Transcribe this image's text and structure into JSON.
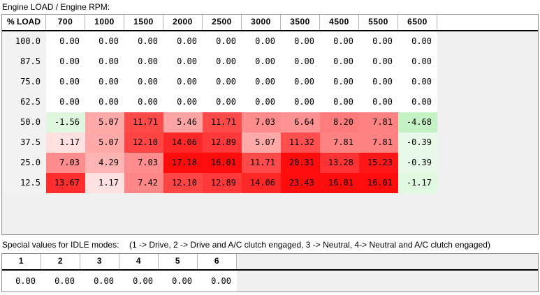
{
  "map": {
    "title": "Engine LOAD / Engine RPM:",
    "corner_label": "% LOAD",
    "rpm_columns": [
      "700",
      "1000",
      "1500",
      "2000",
      "2500",
      "3000",
      "3500",
      "4500",
      "5500",
      "6500"
    ],
    "rows": [
      {
        "load": "100.0",
        "values": [
          0.0,
          0.0,
          0.0,
          0.0,
          0.0,
          0.0,
          0.0,
          0.0,
          0.0,
          0.0
        ]
      },
      {
        "load": "87.5",
        "values": [
          0.0,
          0.0,
          0.0,
          0.0,
          0.0,
          0.0,
          0.0,
          0.0,
          0.0,
          0.0
        ]
      },
      {
        "load": "75.0",
        "values": [
          0.0,
          0.0,
          0.0,
          0.0,
          0.0,
          0.0,
          0.0,
          0.0,
          0.0,
          0.0
        ]
      },
      {
        "load": "62.5",
        "values": [
          0.0,
          0.0,
          0.0,
          0.0,
          0.0,
          0.0,
          0.0,
          0.0,
          0.0,
          0.0
        ]
      },
      {
        "load": "50.0",
        "values": [
          -1.56,
          5.07,
          11.71,
          5.46,
          11.71,
          7.03,
          6.64,
          8.2,
          7.81,
          -4.68
        ]
      },
      {
        "load": "37.5",
        "values": [
          1.17,
          5.07,
          12.1,
          14.06,
          12.89,
          5.07,
          11.32,
          7.81,
          7.81,
          -0.39
        ]
      },
      {
        "load": "25.0",
        "values": [
          7.03,
          4.29,
          7.03,
          17.18,
          16.01,
          11.71,
          20.31,
          13.28,
          15.23,
          -0.39
        ]
      },
      {
        "load": "12.5",
        "values": [
          13.67,
          1.17,
          7.42,
          12.1,
          12.89,
          14.06,
          23.43,
          16.01,
          16.01,
          -1.17
        ]
      }
    ]
  },
  "idle": {
    "label": "Special values for IDLE modes:",
    "note": "(1 -> Drive, 2 -> Drive and A/C clutch engaged, 3 -> Neutral, 4-> Neutral and A/C clutch engaged)",
    "columns": [
      "1",
      "2",
      "3",
      "4",
      "5",
      "6"
    ],
    "values": [
      0.0,
      0.0,
      0.0,
      0.0,
      0.0,
      0.0
    ]
  },
  "colors": {
    "positive_full": "#ff0c0c",
    "negative_full": "#c5f2c5",
    "zero_cell": "#ffffff",
    "panel_gray": "#f0f0f0",
    "header_divider": "#000000"
  }
}
